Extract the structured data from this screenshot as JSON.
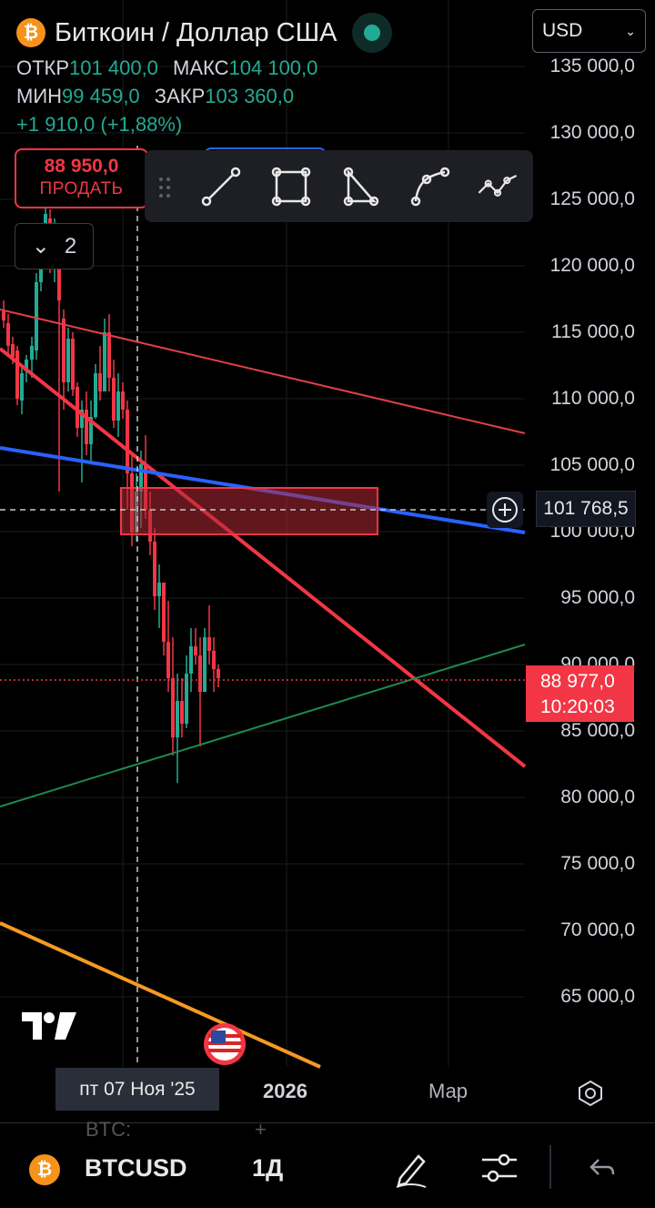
{
  "header": {
    "title": "Биткоин / Доллар США",
    "ohlc": {
      "open_label": "ОТКР",
      "open": "101 400,0",
      "high_label": "МАКС",
      "high": "104 100,0",
      "low_label": "МИН",
      "low": "99 459,0",
      "close_label": "ЗАКР",
      "close": "103 360,0",
      "change": "+1 910,0 (+1,88%)"
    },
    "currency": "USD"
  },
  "trade": {
    "sell_price": "88 950,0",
    "sell_label": "ПРОДАТЬ"
  },
  "drawing_tools": [
    "trend-line",
    "rectangle",
    "triangle",
    "curve",
    "path"
  ],
  "collapse": {
    "count": "2"
  },
  "price_axis": {
    "labels": [
      "135 000,0",
      "130 000,0",
      "125 000,0",
      "120 000,0",
      "115 000,0",
      "110 000,0",
      "105 000,0",
      "100 000,0",
      "95 000,0",
      "90 000,0",
      "85 000,0",
      "80 000,0",
      "75 000,0",
      "70 000,0",
      "65 000,0"
    ],
    "crosshair_price": "101 768,5",
    "last_price": "88 977,0",
    "countdown": "10:20:03"
  },
  "time_axis": {
    "crosshair_date": "пт 07 Ноя '25",
    "labels": [
      "2026",
      "Мар"
    ]
  },
  "bottom_bar": {
    "symbol": "BTCUSD",
    "interval": "1Д",
    "ghost_left": "BTC:",
    "ghost_right": "+"
  },
  "colors": {
    "up": "#22ab94",
    "down": "#f23645",
    "accent": "#2962ff"
  }
}
